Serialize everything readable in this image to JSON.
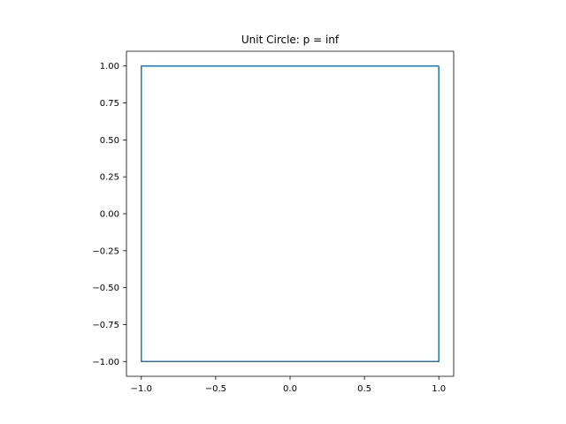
{
  "chart_data": {
    "type": "line",
    "title": "Unit Circle: p = inf",
    "xlabel": "",
    "ylabel": "",
    "xlim": [
      -1.1,
      1.1
    ],
    "ylim": [
      -1.1,
      1.1
    ],
    "x_ticks": [
      -1.0,
      -0.5,
      0.0,
      0.5,
      1.0
    ],
    "x_tick_labels": [
      "−1.0",
      "−0.5",
      "0.0",
      "0.5",
      "1.0"
    ],
    "y_ticks": [
      1.0,
      0.75,
      0.5,
      0.25,
      0.0,
      -0.25,
      -0.5,
      -0.75,
      -1.0
    ],
    "y_tick_labels": [
      "1.00",
      "0.75",
      "0.50",
      "0.25",
      "0.00",
      "−0.25",
      "−0.50",
      "−0.75",
      "−1.00"
    ],
    "grid": false,
    "aspect": "equal",
    "series": [
      {
        "color": "#1f77b4",
        "x": [
          1.0,
          -1.0,
          -1.0,
          1.0,
          1.0
        ],
        "y": [
          1.0,
          1.0,
          -1.0,
          -1.0,
          1.0
        ]
      }
    ]
  }
}
